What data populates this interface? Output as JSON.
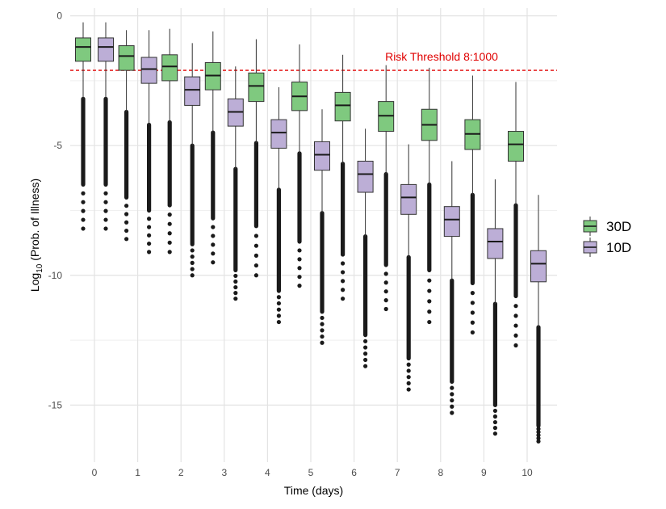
{
  "chart_data": {
    "type": "boxplot",
    "x_categories": [
      "0",
      "1",
      "2",
      "3",
      "4",
      "5",
      "6",
      "7",
      "8",
      "9",
      "10"
    ],
    "xlabel": "Time (days)",
    "ylabel_prefix": "Log",
    "ylabel_subscript": "10",
    "ylabel_suffix": " (Prob. of Illness)",
    "ylim": [
      -17.2,
      0.3
    ],
    "y_ticks": [
      0,
      -5,
      -10,
      -15
    ],
    "grid": true,
    "legend_position": "right",
    "threshold": {
      "value": -2.1,
      "label": "Risk Threshold 8:1000",
      "color": "#e00000"
    },
    "series": [
      {
        "name": "30D",
        "color": "#7fc97f",
        "boxes": [
          {
            "x": "0",
            "whisker_high": -0.25,
            "q3": -0.85,
            "median": -1.2,
            "q1": -1.75,
            "whisker_low": -3.2,
            "outlier_tail_low": -6.5,
            "outlier_min": -8.2
          },
          {
            "x": "1",
            "whisker_high": -0.55,
            "q3": -1.15,
            "median": -1.55,
            "q1": -2.1,
            "whisker_low": -3.7,
            "outlier_tail_low": -7.0,
            "outlier_min": -8.6
          },
          {
            "x": "2",
            "whisker_high": -0.5,
            "q3": -1.5,
            "median": -1.95,
            "q1": -2.5,
            "whisker_low": -4.1,
            "outlier_tail_low": -7.3,
            "outlier_min": -9.1
          },
          {
            "x": "3",
            "whisker_high": -0.6,
            "q3": -1.8,
            "median": -2.3,
            "q1": -2.85,
            "whisker_low": -4.5,
            "outlier_tail_low": -7.8,
            "outlier_min": -9.5
          },
          {
            "x": "4",
            "whisker_high": -0.9,
            "q3": -2.2,
            "median": -2.7,
            "q1": -3.3,
            "whisker_low": -4.9,
            "outlier_tail_low": -8.1,
            "outlier_min": -10.0
          },
          {
            "x": "5",
            "whisker_high": -1.1,
            "q3": -2.55,
            "median": -3.1,
            "q1": -3.65,
            "whisker_low": -5.3,
            "outlier_tail_low": -8.7,
            "outlier_min": -10.4
          },
          {
            "x": "6",
            "whisker_high": -1.5,
            "q3": -2.95,
            "median": -3.45,
            "q1": -4.05,
            "whisker_low": -5.7,
            "outlier_tail_low": -9.2,
            "outlier_min": -10.9
          },
          {
            "x": "7",
            "whisker_high": -1.9,
            "q3": -3.3,
            "median": -3.85,
            "q1": -4.45,
            "whisker_low": -6.1,
            "outlier_tail_low": -9.6,
            "outlier_min": -11.3
          },
          {
            "x": "8",
            "whisker_high": -2.0,
            "q3": -3.6,
            "median": -4.2,
            "q1": -4.8,
            "whisker_low": -6.5,
            "outlier_tail_low": -9.8,
            "outlier_min": -11.8
          },
          {
            "x": "9",
            "whisker_high": -2.3,
            "q3": -4.0,
            "median": -4.55,
            "q1": -5.15,
            "whisker_low": -6.9,
            "outlier_tail_low": -10.3,
            "outlier_min": -12.2
          },
          {
            "x": "10",
            "whisker_high": -2.55,
            "q3": -4.45,
            "median": -4.95,
            "q1": -5.6,
            "whisker_low": -7.3,
            "outlier_tail_low": -10.8,
            "outlier_min": -12.7
          }
        ]
      },
      {
        "name": "10D",
        "color": "#bcaed6",
        "boxes": [
          {
            "x": "0",
            "whisker_high": -0.25,
            "q3": -0.85,
            "median": -1.2,
            "q1": -1.75,
            "whisker_low": -3.2,
            "outlier_tail_low": -6.5,
            "outlier_min": -8.2
          },
          {
            "x": "1",
            "whisker_high": -0.55,
            "q3": -1.6,
            "median": -2.05,
            "q1": -2.6,
            "whisker_low": -4.2,
            "outlier_tail_low": -7.5,
            "outlier_min": -9.1
          },
          {
            "x": "2",
            "whisker_high": -1.05,
            "q3": -2.35,
            "median": -2.85,
            "q1": -3.45,
            "whisker_low": -5.0,
            "outlier_tail_low": -8.8,
            "outlier_min": -10.0
          },
          {
            "x": "3",
            "whisker_high": -1.95,
            "q3": -3.2,
            "median": -3.7,
            "q1": -4.25,
            "whisker_low": -5.9,
            "outlier_tail_low": -9.8,
            "outlier_min": -10.9
          },
          {
            "x": "4",
            "whisker_high": -2.75,
            "q3": -4.0,
            "median": -4.5,
            "q1": -5.1,
            "whisker_low": -6.7,
            "outlier_tail_low": -10.6,
            "outlier_min": -11.8
          },
          {
            "x": "5",
            "whisker_high": -3.6,
            "q3": -4.85,
            "median": -5.35,
            "q1": -5.95,
            "whisker_low": -7.6,
            "outlier_tail_low": -11.4,
            "outlier_min": -12.6
          },
          {
            "x": "6",
            "whisker_high": -4.35,
            "q3": -5.6,
            "median": -6.1,
            "q1": -6.8,
            "whisker_low": -8.5,
            "outlier_tail_low": -12.3,
            "outlier_min": -13.5
          },
          {
            "x": "7",
            "whisker_high": -4.95,
            "q3": -6.5,
            "median": -7.0,
            "q1": -7.65,
            "whisker_low": -9.3,
            "outlier_tail_low": -13.2,
            "outlier_min": -14.4
          },
          {
            "x": "8",
            "whisker_high": -5.6,
            "q3": -7.35,
            "median": -7.85,
            "q1": -8.5,
            "whisker_low": -10.2,
            "outlier_tail_low": -14.1,
            "outlier_min": -15.3
          },
          {
            "x": "9",
            "whisker_high": -6.3,
            "q3": -8.2,
            "median": -8.7,
            "q1": -9.35,
            "whisker_low": -11.1,
            "outlier_tail_low": -15.0,
            "outlier_min": -16.1
          },
          {
            "x": "10",
            "whisker_high": -6.9,
            "q3": -9.05,
            "median": -9.55,
            "q1": -10.25,
            "whisker_low": -12.0,
            "outlier_tail_low": -15.8,
            "outlier_min": -16.4
          }
        ]
      }
    ]
  }
}
